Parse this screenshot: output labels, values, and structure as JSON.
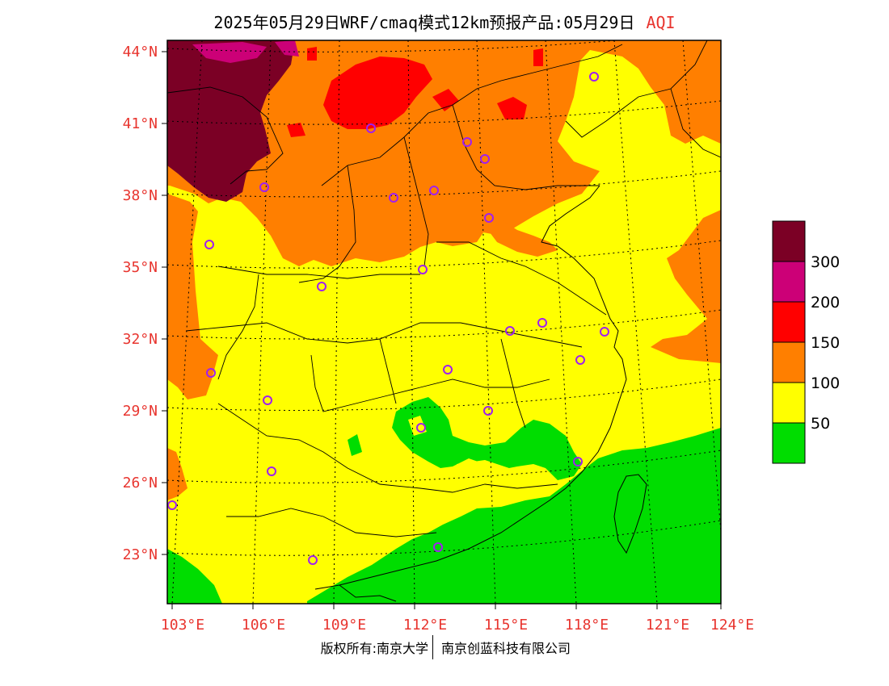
{
  "title": {
    "main": "2025年05月29日WRF/cmaq模式12km预报产品:05月29日",
    "variable": "AQI"
  },
  "axes": {
    "lat_labels": [
      "44°N",
      "41°N",
      "38°N",
      "35°N",
      "32°N",
      "29°N",
      "26°N",
      "23°N"
    ],
    "lon_labels": [
      "103°E",
      "106°E",
      "109°E",
      "112°E",
      "115°E",
      "118°E",
      "121°E",
      "124°E"
    ]
  },
  "legend": {
    "labels": [
      "300",
      "200",
      "150",
      "100",
      "50"
    ],
    "colors": {
      "severe": "#7b0025",
      "very_unhealthy": "#cc0077",
      "unhealthy": "#ff0000",
      "sensitive": "#ff7f00",
      "moderate": "#ffff00",
      "good": "#00dd00"
    }
  },
  "footer": {
    "left": "版权所有:南京大学",
    "right": "南京创蓝科技有限公司"
  },
  "colors": {
    "label_red": "#e8352f",
    "station_marker": "#a020f0"
  }
}
